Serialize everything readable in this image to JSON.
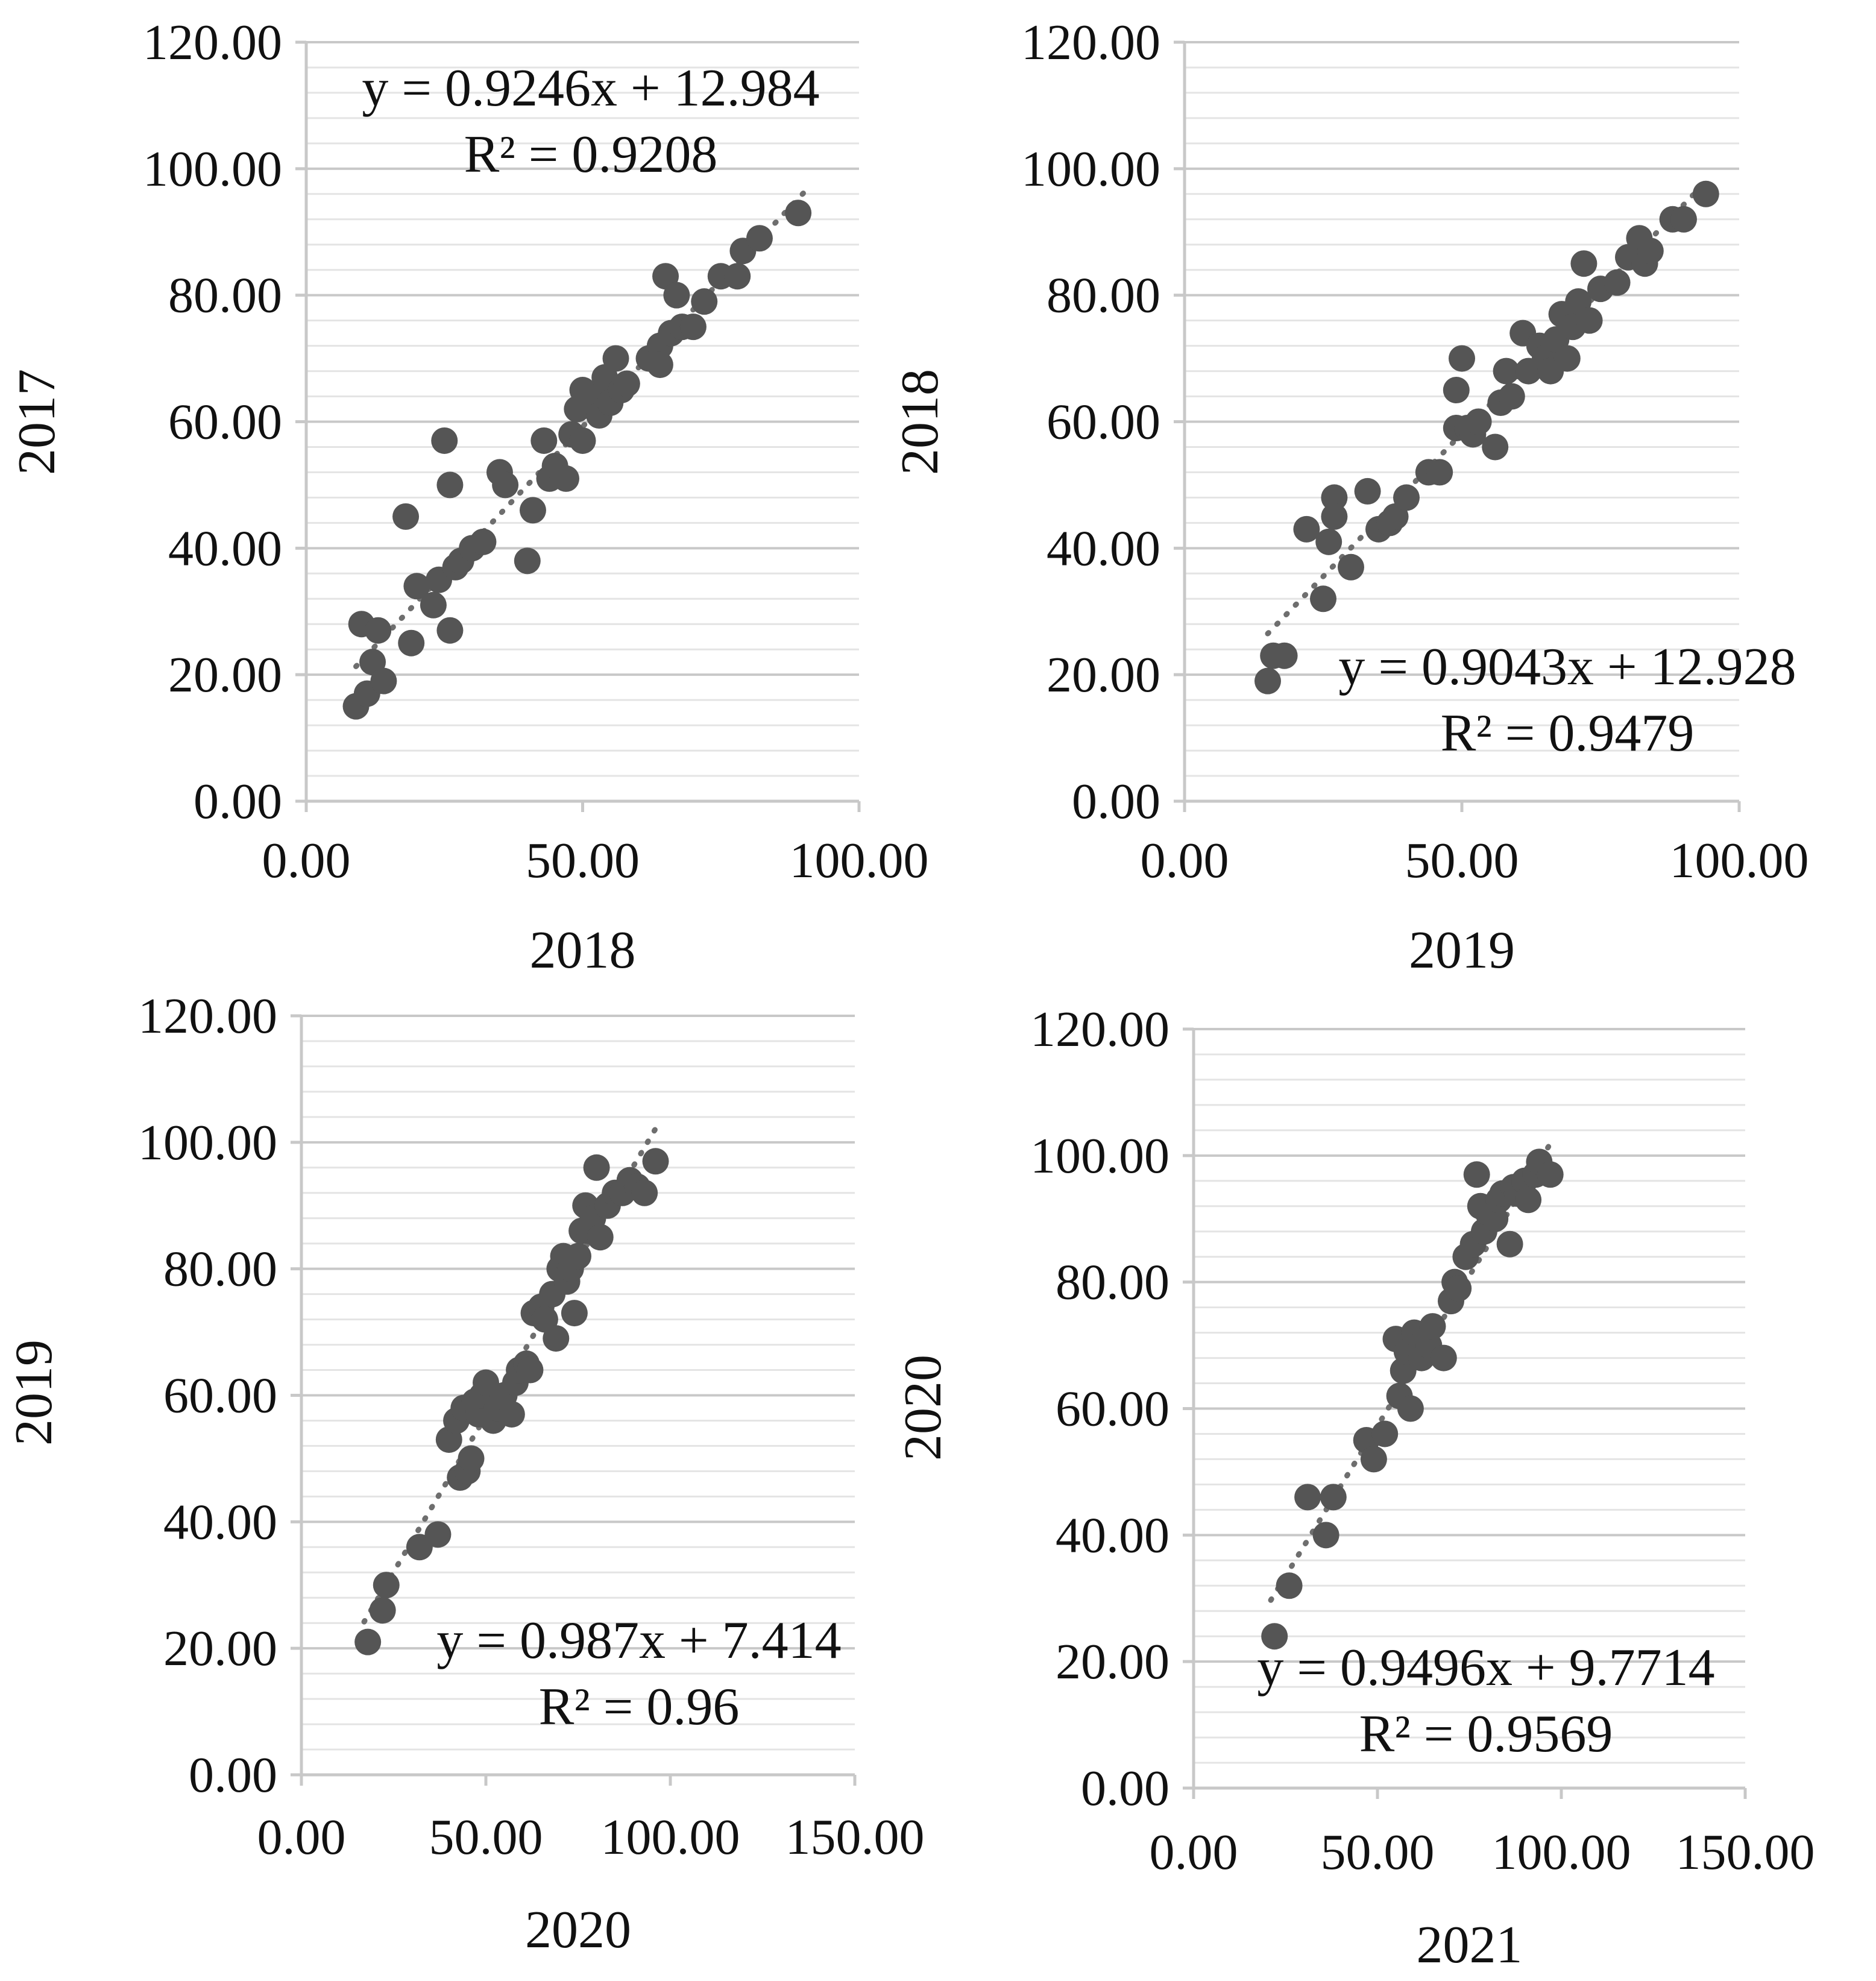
{
  "colors": {
    "marker": "#555555",
    "trendline": "#6e6e6e",
    "grid_major": "#c8c8c8",
    "grid_minor": "#e4e4e4",
    "text": "#111111"
  },
  "chart_data": [
    {
      "type": "scatter",
      "title": "",
      "xlabel": "2018",
      "ylabel": "2017",
      "xlim": [
        0,
        100
      ],
      "ylim": [
        0,
        120
      ],
      "x_ticks": [
        "0.00",
        "50.00",
        "100.00"
      ],
      "y_ticks": [
        "0.00",
        "20.00",
        "40.00",
        "60.00",
        "80.00",
        "100.00",
        "120.00"
      ],
      "grid": "horizontal",
      "trendline": {
        "slope": 0.9246,
        "intercept": 12.984,
        "x_range": [
          9,
          90
        ],
        "style": "dotted"
      },
      "equation": "y = 0.9246x + 12.984",
      "r_squared": "R² = 0.9208",
      "equation_position": "top-left",
      "points": [
        [
          9,
          15
        ],
        [
          11,
          17
        ],
        [
          12,
          22
        ],
        [
          14,
          19
        ],
        [
          10,
          28
        ],
        [
          13,
          27
        ],
        [
          19,
          25
        ],
        [
          18,
          45
        ],
        [
          20,
          34
        ],
        [
          23,
          31
        ],
        [
          24,
          35
        ],
        [
          25,
          57
        ],
        [
          26,
          50
        ],
        [
          26,
          27
        ],
        [
          27,
          37
        ],
        [
          28,
          38
        ],
        [
          30,
          40
        ],
        [
          32,
          41
        ],
        [
          35,
          52
        ],
        [
          36,
          50
        ],
        [
          40,
          38
        ],
        [
          41,
          46
        ],
        [
          43,
          57
        ],
        [
          44,
          51
        ],
        [
          45,
          53
        ],
        [
          47,
          51
        ],
        [
          48,
          58
        ],
        [
          49,
          62
        ],
        [
          50,
          65
        ],
        [
          50,
          57
        ],
        [
          52,
          64
        ],
        [
          53,
          61
        ],
        [
          54,
          67
        ],
        [
          55,
          63
        ],
        [
          56,
          70
        ],
        [
          57,
          65
        ],
        [
          58,
          66
        ],
        [
          62,
          70
        ],
        [
          64,
          72
        ],
        [
          64,
          69
        ],
        [
          65,
          83
        ],
        [
          66,
          74
        ],
        [
          67,
          80
        ],
        [
          68,
          75
        ],
        [
          70,
          75
        ],
        [
          72,
          79
        ],
        [
          75,
          83
        ],
        [
          78,
          83
        ],
        [
          79,
          87
        ],
        [
          82,
          89
        ],
        [
          89,
          93
        ]
      ]
    },
    {
      "type": "scatter",
      "title": "",
      "xlabel": "2019",
      "ylabel": "2018",
      "xlim": [
        0,
        100
      ],
      "ylim": [
        0,
        120
      ],
      "x_ticks": [
        "0.00",
        "50.00",
        "100.00"
      ],
      "y_ticks": [
        "0.00",
        "20.00",
        "40.00",
        "60.00",
        "80.00",
        "100.00",
        "120.00"
      ],
      "grid": "horizontal",
      "trendline": {
        "slope": 0.9043,
        "intercept": 12.928,
        "x_range": [
          15,
          94
        ],
        "style": "dotted"
      },
      "equation": "y = 0.9043x + 12.928",
      "r_squared": "R² = 0.9479",
      "equation_position": "bottom-right",
      "points": [
        [
          15,
          19
        ],
        [
          16,
          23
        ],
        [
          18,
          23
        ],
        [
          22,
          43
        ],
        [
          25,
          32
        ],
        [
          26,
          41
        ],
        [
          27,
          48
        ],
        [
          27,
          45
        ],
        [
          30,
          37
        ],
        [
          33,
          49
        ],
        [
          35,
          43
        ],
        [
          37,
          44
        ],
        [
          38,
          45
        ],
        [
          40,
          48
        ],
        [
          44,
          52
        ],
        [
          46,
          52
        ],
        [
          49,
          59
        ],
        [
          49,
          65
        ],
        [
          50,
          70
        ],
        [
          51,
          59
        ],
        [
          52,
          58
        ],
        [
          53,
          60
        ],
        [
          56,
          56
        ],
        [
          57,
          63
        ],
        [
          58,
          68
        ],
        [
          59,
          64
        ],
        [
          61,
          74
        ],
        [
          62,
          68
        ],
        [
          64,
          72
        ],
        [
          65,
          70
        ],
        [
          66,
          68
        ],
        [
          67,
          73
        ],
        [
          68,
          77
        ],
        [
          69,
          70
        ],
        [
          70,
          75
        ],
        [
          71,
          79
        ],
        [
          72,
          85
        ],
        [
          73,
          76
        ],
        [
          75,
          81
        ],
        [
          78,
          82
        ],
        [
          80,
          86
        ],
        [
          82,
          89
        ],
        [
          83,
          85
        ],
        [
          84,
          87
        ],
        [
          88,
          92
        ],
        [
          90,
          92
        ],
        [
          94,
          96
        ]
      ]
    },
    {
      "type": "scatter",
      "title": "",
      "xlabel": "2020",
      "ylabel": "2019",
      "xlim": [
        0,
        150
      ],
      "ylim": [
        0,
        120
      ],
      "x_ticks": [
        "0.00",
        "50.00",
        "100.00",
        "150.00"
      ],
      "y_ticks": [
        "0.00",
        "20.00",
        "40.00",
        "60.00",
        "80.00",
        "100.00",
        "120.00"
      ],
      "grid": "horizontal",
      "trendline": {
        "slope": 0.987,
        "intercept": 7.414,
        "x_range": [
          17,
          96
        ],
        "style": "dotted"
      },
      "equation": "y = 0.987x + 7.414",
      "r_squared": "R² = 0.96",
      "equation_position": "bottom-right",
      "points": [
        [
          18,
          21
        ],
        [
          22,
          26
        ],
        [
          23,
          30
        ],
        [
          32,
          36
        ],
        [
          37,
          38
        ],
        [
          40,
          53
        ],
        [
          42,
          56
        ],
        [
          43,
          47
        ],
        [
          44,
          58
        ],
        [
          45,
          48
        ],
        [
          46,
          50
        ],
        [
          47,
          59
        ],
        [
          48,
          57
        ],
        [
          49,
          60
        ],
        [
          50,
          62
        ],
        [
          52,
          56
        ],
        [
          53,
          58
        ],
        [
          55,
          60
        ],
        [
          57,
          57
        ],
        [
          58,
          62
        ],
        [
          59,
          64
        ],
        [
          61,
          65
        ],
        [
          62,
          64
        ],
        [
          63,
          73
        ],
        [
          65,
          74
        ],
        [
          66,
          72
        ],
        [
          68,
          76
        ],
        [
          69,
          69
        ],
        [
          70,
          80
        ],
        [
          71,
          82
        ],
        [
          72,
          78
        ],
        [
          73,
          80
        ],
        [
          74,
          73
        ],
        [
          75,
          82
        ],
        [
          76,
          86
        ],
        [
          77,
          90
        ],
        [
          78,
          86
        ],
        [
          79,
          88
        ],
        [
          80,
          96
        ],
        [
          81,
          85
        ],
        [
          83,
          90
        ],
        [
          85,
          92
        ],
        [
          87,
          92
        ],
        [
          89,
          94
        ],
        [
          91,
          93
        ],
        [
          93,
          92
        ],
        [
          96,
          97
        ]
      ]
    },
    {
      "type": "scatter",
      "title": "",
      "xlabel": "2021",
      "ylabel": "2020",
      "xlim": [
        0,
        150
      ],
      "ylim": [
        0,
        120
      ],
      "x_ticks": [
        "0.00",
        "50.00",
        "100.00",
        "150.00"
      ],
      "y_ticks": [
        "0.00",
        "20.00",
        "40.00",
        "60.00",
        "80.00",
        "100.00",
        "120.00"
      ],
      "grid": "horizontal",
      "trendline": {
        "slope": 0.9496,
        "intercept": 9.7714,
        "x_range": [
          21,
          97
        ],
        "style": "dotted"
      },
      "equation": "y = 0.9496x + 9.7714",
      "r_squared": "R² = 0.9569",
      "equation_position": "bottom-right",
      "points": [
        [
          22,
          24
        ],
        [
          26,
          32
        ],
        [
          31,
          46
        ],
        [
          36,
          40
        ],
        [
          38,
          46
        ],
        [
          47,
          55
        ],
        [
          49,
          52
        ],
        [
          52,
          56
        ],
        [
          55,
          71
        ],
        [
          56,
          62
        ],
        [
          57,
          66
        ],
        [
          58,
          69
        ],
        [
          59,
          60
        ],
        [
          60,
          72
        ],
        [
          62,
          68
        ],
        [
          63,
          71
        ],
        [
          64,
          70
        ],
        [
          65,
          73
        ],
        [
          68,
          68
        ],
        [
          70,
          77
        ],
        [
          71,
          80
        ],
        [
          72,
          79
        ],
        [
          74,
          84
        ],
        [
          76,
          86
        ],
        [
          77,
          97
        ],
        [
          78,
          92
        ],
        [
          79,
          88
        ],
        [
          80,
          91
        ],
        [
          82,
          90
        ],
        [
          83,
          93
        ],
        [
          84,
          94
        ],
        [
          86,
          86
        ],
        [
          87,
          95
        ],
        [
          88,
          94
        ],
        [
          90,
          96
        ],
        [
          91,
          93
        ],
        [
          93,
          97
        ],
        [
          94,
          99
        ],
        [
          97,
          97
        ]
      ]
    }
  ]
}
